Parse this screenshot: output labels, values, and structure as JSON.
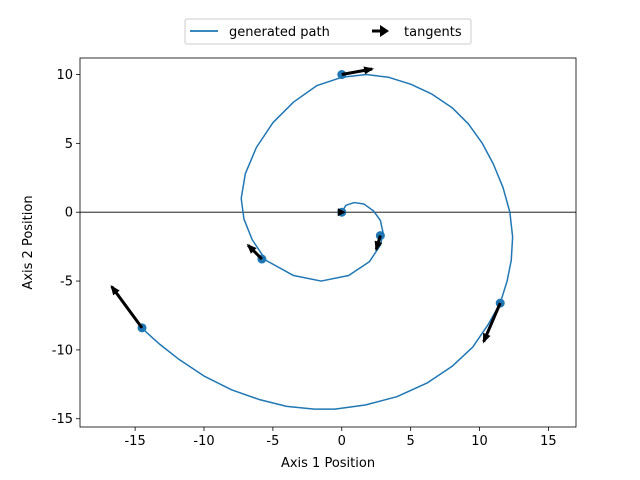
{
  "chart_data": {
    "type": "line",
    "xlabel": "Axis 1 Position",
    "ylabel": "Axis 2 Position",
    "xlim": [
      -19.0,
      17.0
    ],
    "ylim": [
      -15.6,
      11.2
    ],
    "xticks": [
      -15,
      -10,
      -5,
      0,
      5,
      10,
      15
    ],
    "yticks": [
      -15,
      -10,
      -5,
      0,
      5,
      10
    ],
    "hline_y": 0,
    "legend": {
      "placement": "upper center, outside above plot",
      "entries": [
        "generated path",
        "tangents"
      ]
    },
    "series": [
      {
        "name": "generated path",
        "kind": "line",
        "color": "#1f77b4",
        "x": [
          0.0,
          0.3,
          0.9,
          1.6,
          2.3,
          2.8,
          3.0,
          2.8,
          2.0,
          0.5,
          -1.5,
          -3.5,
          -5.5,
          -6.5,
          -7.1,
          -7.3,
          -7.0,
          -6.2,
          -5.0,
          -3.5,
          -1.8,
          0.0,
          1.8,
          3.4,
          5.0,
          6.5,
          8.0,
          9.2,
          10.2,
          11.0,
          11.7,
          12.2,
          12.4,
          12.3,
          12.0,
          11.5,
          10.6,
          9.5,
          8.0,
          6.2,
          4.0,
          1.7,
          -0.5,
          -2.0,
          -4.0,
          -6.0,
          -8.0,
          -10.0,
          -11.8,
          -13.2,
          -14.1,
          -14.5
        ],
        "y": [
          0.0,
          0.5,
          0.7,
          0.6,
          0.1,
          -0.6,
          -1.5,
          -2.4,
          -3.6,
          -4.6,
          -5.0,
          -4.6,
          -3.5,
          -2.0,
          -0.5,
          1.0,
          2.8,
          4.7,
          6.5,
          8.0,
          9.2,
          9.8,
          10.0,
          9.8,
          9.3,
          8.6,
          7.6,
          6.4,
          5.0,
          3.5,
          1.8,
          0.0,
          -1.8,
          -3.5,
          -5.0,
          -6.6,
          -8.2,
          -9.8,
          -11.2,
          -12.4,
          -13.4,
          -14.0,
          -14.3,
          -14.3,
          -14.1,
          -13.6,
          -12.9,
          -11.9,
          -10.7,
          -9.6,
          -8.8,
          -8.4
        ]
      },
      {
        "name": "",
        "kind": "points",
        "color": "#1f77b4",
        "x": [
          0.0,
          2.8,
          -5.8,
          0.0,
          11.5,
          -14.5
        ],
        "y": [
          0.0,
          -1.7,
          -3.4,
          10.0,
          -6.6,
          -8.4
        ]
      }
    ],
    "tangents": {
      "name": "tangents",
      "color": "#000000",
      "x": [
        0.0,
        2.8,
        -5.8,
        0.0,
        11.5,
        -14.5
      ],
      "y": [
        0.0,
        -1.7,
        -3.4,
        10.0,
        -6.6,
        -8.4
      ],
      "dx": [
        0.0,
        -0.3,
        -1.0,
        2.2,
        -1.2,
        -2.2
      ],
      "dy": [
        0.0,
        -1.0,
        1.0,
        0.4,
        -2.8,
        3.0
      ]
    }
  }
}
